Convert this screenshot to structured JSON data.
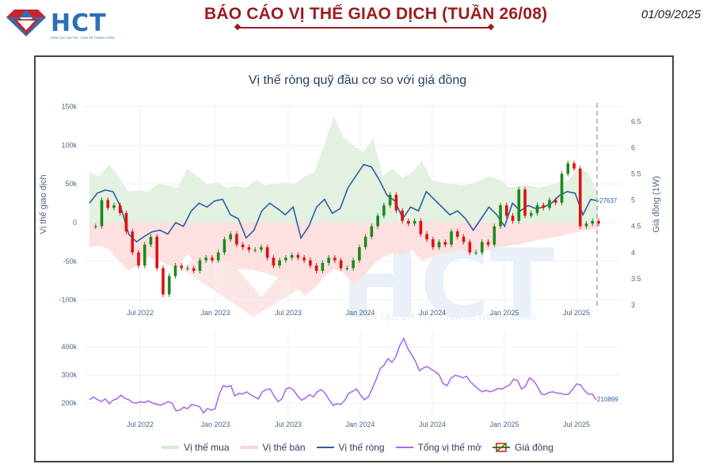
{
  "header": {
    "logo_text": "HCT",
    "logo_tagline": "KIẾN TẠO GIÁ TRỊ - CHIA SẺ THÀNH CÔNG",
    "report_title": "BÁO CÁO VỊ THẾ GIAO DỊCH (TUẦN 26/08)",
    "date": "01/09/2025",
    "title_color": "#9b1c1f",
    "logo_color": "#2d6fb5"
  },
  "watermark": {
    "text": "HCT",
    "tagline": "KIẾN TẠO GIÁ TRỊ - CHIA SẺ THÀNH CÔNG"
  },
  "chart_data": [
    {
      "type": "line",
      "title": "Vị thế ròng quỹ đầu cơ so với giá đồng",
      "ylabel": "Vị thế giao dịch",
      "y2label": "Giá đồng (1W)",
      "ylim": [
        -100000,
        150000
      ],
      "y_ticks": [
        "150k",
        "100k",
        "50k",
        "0",
        "-50k",
        "-100k"
      ],
      "y2lim": [
        3,
        6.5
      ],
      "y2_ticks": [
        "6.5",
        "6",
        "5.5",
        "5",
        "4.5",
        "4",
        "3.5",
        "3"
      ],
      "x_ticks": [
        "Jul 2022",
        "Jan 2023",
        "Jul 2023",
        "Jan 2024",
        "Jul 2024",
        "Jan 2025",
        "Jul 2025"
      ],
      "grid": true,
      "legend_position": "bottom",
      "last_value_label": "27637",
      "series": [
        {
          "name": "Vị thế mua",
          "type": "area",
          "color": "#e3f1e1",
          "values": [
            65000,
            60000,
            75000,
            60000,
            40000,
            42000,
            40000,
            50000,
            48000,
            45000,
            70000,
            60000,
            50000,
            52000,
            45000,
            47000,
            45000,
            55000,
            48000,
            50000,
            52000,
            50000,
            60000,
            65000,
            100000,
            138000,
            110000,
            100000,
            90000,
            110000,
            60000,
            70000,
            58000,
            65000,
            80000,
            55000,
            52000,
            50000,
            48000,
            50000,
            55000,
            60000,
            55000,
            45000,
            48000,
            48000,
            45000,
            48000,
            52000,
            55000,
            70000,
            65000,
            40000
          ]
        },
        {
          "name": "Vị thế bán",
          "type": "area",
          "color": "#fde0e0",
          "values": [
            -32000,
            -30000,
            -35000,
            -50000,
            -62000,
            -55000,
            -45000,
            -48000,
            -55000,
            -60000,
            -40000,
            -55000,
            -45000,
            -52000,
            -50000,
            -55000,
            -58000,
            -62000,
            -65000,
            -70000,
            -72000,
            -80000,
            -95000,
            -85000,
            -70000,
            -60000,
            -65000,
            -80000,
            -70000,
            -55000,
            -45000,
            -40000,
            -42000,
            -35000,
            -50000,
            -45000,
            -40000,
            -38000,
            -35000,
            -40000,
            -38000,
            -35000,
            -32000,
            -30000,
            -28000,
            -25000,
            -22000,
            -20000,
            -18000,
            -15000,
            -12000,
            -10000,
            -8000
          ]
        },
        {
          "name": "Vị thế ròng",
          "type": "line",
          "color": "#2b5fa3",
          "values": [
            25000,
            38000,
            42000,
            40000,
            20000,
            -15000,
            -25000,
            -18000,
            -12000,
            -10000,
            -15000,
            0,
            -5000,
            15000,
            25000,
            20000,
            28000,
            30000,
            10000,
            5000,
            -20000,
            -10000,
            15000,
            25000,
            18000,
            10000,
            20000,
            -20000,
            -5000,
            20000,
            30000,
            12000,
            18000,
            45000,
            60000,
            75000,
            72000,
            55000,
            35000,
            28000,
            5000,
            20000,
            15000,
            40000,
            30000,
            20000,
            10000,
            15000,
            5000,
            -10000,
            5000,
            20000,
            10000,
            -5000,
            25000,
            15000,
            22000,
            18000,
            20000,
            25000,
            35000,
            40000,
            38000,
            10000,
            30000,
            27637
          ]
        },
        {
          "name": "Giá đồng",
          "type": "candlestick",
          "increasing_color": "#1a8a1a",
          "decreasing_color": "#e01010",
          "values": [
            4.5,
            4.5,
            5,
            4.85,
            4.9,
            4.75,
            4.4,
            4.0,
            3.75,
            4.15,
            4.3,
            3.7,
            3.2,
            3.55,
            3.75,
            3.7,
            3.7,
            3.65,
            3.85,
            3.9,
            3.85,
            4.0,
            4.25,
            4.35,
            4.15,
            4.1,
            4.05,
            4.05,
            4.1,
            3.9,
            3.75,
            3.85,
            3.9,
            3.95,
            3.9,
            3.85,
            3.75,
            3.65,
            3.8,
            3.9,
            3.85,
            3.7,
            3.7,
            3.85,
            4.1,
            4.3,
            4.5,
            4.7,
            4.9,
            5.1,
            4.8,
            4.6,
            4.55,
            4.6,
            4.35,
            4.25,
            4.1,
            4.2,
            4.15,
            4.4,
            4.3,
            4.2,
            4.0,
            4.0,
            4.2,
            4.15,
            4.5,
            4.9,
            4.7,
            4.6,
            5.2,
            4.7,
            4.75,
            4.9,
            4.85,
            5.0,
            4.95,
            5.5,
            5.7,
            5.6,
            4.5,
            4.55,
            4.6,
            4.55
          ]
        }
      ]
    },
    {
      "type": "line",
      "title": "",
      "ylabel": "",
      "ylim": [
        150000,
        450000
      ],
      "y_ticks": [
        "400k",
        "300k",
        "200k"
      ],
      "x_ticks": [
        "Jul 2022",
        "Jan 2023",
        "Jul 2023",
        "Jan 2024",
        "Jul 2024",
        "Jan 2025",
        "Jul 2025"
      ],
      "grid": true,
      "last_value_label": "210899",
      "series": [
        {
          "name": "Tổng vị thế mở",
          "type": "line",
          "color": "#a66cf0",
          "values": [
            212000,
            222000,
            213000,
            205000,
            215000,
            198000,
            210000,
            215000,
            228000,
            217000,
            212000,
            202000,
            200000,
            205000,
            202000,
            208000,
            200000,
            197000,
            192000,
            198000,
            205000,
            200000,
            173000,
            175000,
            185000,
            180000,
            195000,
            192000,
            188000,
            165000,
            180000,
            175000,
            180000,
            230000,
            262000,
            258000,
            262000,
            225000,
            235000,
            232000,
            240000,
            230000,
            222000,
            215000,
            240000,
            248000,
            250000,
            225000,
            205000,
            215000,
            250000,
            255000,
            245000,
            225000,
            210000,
            218000,
            230000,
            222000,
            240000,
            248000,
            235000,
            212000,
            192000,
            198000,
            195000,
            210000,
            235000,
            242000,
            250000,
            228000,
            212000,
            222000,
            252000,
            285000,
            322000,
            335000,
            358000,
            345000,
            365000,
            405000,
            430000,
            395000,
            372000,
            348000,
            315000,
            325000,
            330000,
            320000,
            312000,
            300000,
            270000,
            262000,
            288000,
            298000,
            296000,
            290000,
            295000,
            275000,
            262000,
            250000,
            240000,
            245000,
            240000,
            245000,
            252000,
            250000,
            258000,
            265000,
            285000,
            280000,
            250000,
            260000,
            290000,
            280000,
            260000,
            232000,
            230000,
            238000,
            240000,
            235000,
            235000,
            230000,
            232000,
            250000,
            268000,
            265000,
            245000,
            232000,
            232000,
            210899
          ]
        }
      ]
    }
  ],
  "legend": [
    {
      "label": "Vị thế mua",
      "color": "#d6ead3"
    },
    {
      "label": "Vị thế bán",
      "color": "#fcd4d4"
    },
    {
      "label": "Vị thế ròng",
      "color": "#2b5fa3"
    },
    {
      "label": "Tổng vị thế mở",
      "color": "#a66cf0"
    },
    {
      "label": "Giá đồng",
      "color": "#1a8a1a"
    }
  ]
}
